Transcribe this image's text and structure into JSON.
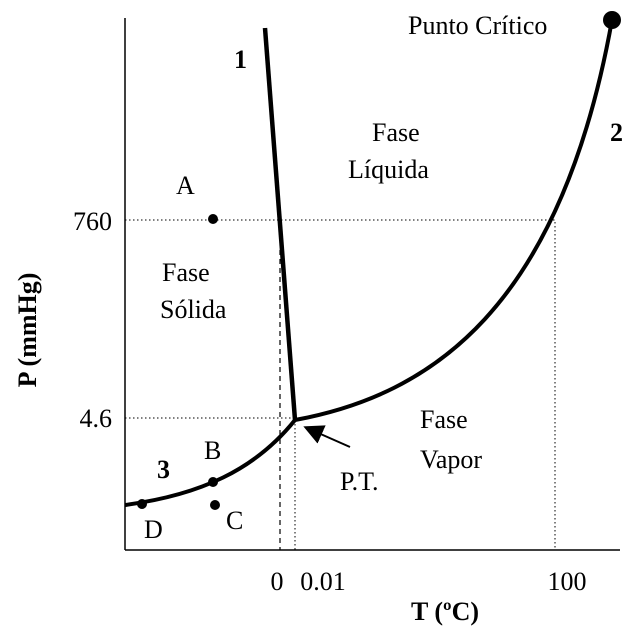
{
  "title": "Punto Crítico",
  "curves": {
    "fusion": "1",
    "vaporization": "2",
    "sublimation": "3"
  },
  "regions": {
    "liquid": [
      "Fase",
      "Líquida"
    ],
    "solid": [
      "Fase",
      "Sólida"
    ],
    "vapor": [
      "Fase",
      "Vapor"
    ]
  },
  "triple_point": "P.T.",
  "points": [
    "A",
    "B",
    "C",
    "D"
  ],
  "y_axis": {
    "label": "P (mmHg)",
    "ticks": [
      "760",
      "4.6"
    ]
  },
  "x_axis": {
    "label": "T (ºC)",
    "ticks": [
      "0",
      "0.01",
      "100"
    ]
  }
}
